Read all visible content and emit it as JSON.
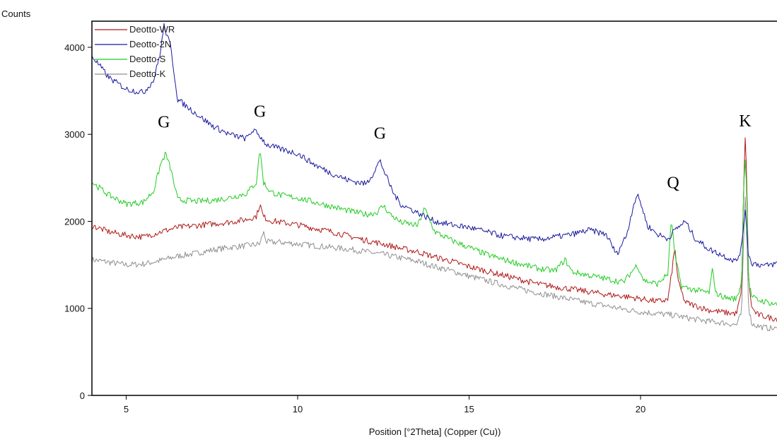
{
  "chart_data": {
    "type": "line",
    "ylabel": "Counts",
    "xlabel": "Position [°2Theta] (Copper (Cu))",
    "xlim": [
      4,
      24
    ],
    "ylim": [
      0,
      4300
    ],
    "xticks": [
      5,
      10,
      15,
      20
    ],
    "yticks": [
      0,
      1000,
      2000,
      3000,
      4000
    ],
    "grid": false,
    "legend_position": "top-left",
    "series": [
      {
        "name": "Deotto-WR",
        "color": "#b01818",
        "x": [
          4,
          4.5,
          5,
          5.5,
          6,
          6.5,
          7,
          7.5,
          8,
          8.5,
          8.8,
          8.9,
          9.0,
          9.2,
          9.5,
          10,
          10.5,
          11,
          11.5,
          12,
          12.5,
          13,
          13.5,
          14,
          14.5,
          15,
          15.5,
          16,
          16.5,
          17,
          17.5,
          18,
          18.5,
          19,
          19.5,
          20,
          20.5,
          20.8,
          20.9,
          21.0,
          21.1,
          21.3,
          21.6,
          22,
          22.5,
          22.8,
          22.95,
          23.0,
          23.05,
          23.1,
          23.15,
          23.25,
          23.4,
          23.6,
          23.8,
          24
        ],
        "y": [
          1950,
          1880,
          1840,
          1820,
          1880,
          1930,
          1950,
          1970,
          1990,
          2020,
          2060,
          2200,
          2050,
          2010,
          1990,
          1960,
          1920,
          1880,
          1830,
          1780,
          1740,
          1690,
          1650,
          1590,
          1540,
          1480,
          1430,
          1380,
          1330,
          1280,
          1250,
          1220,
          1190,
          1160,
          1140,
          1110,
          1080,
          1100,
          1380,
          1700,
          1300,
          1070,
          1030,
          980,
          950,
          940,
          1200,
          2300,
          2950,
          2500,
          1300,
          1000,
          930,
          910,
          890,
          880
        ]
      },
      {
        "name": "Deotto-2N",
        "color": "#1a1aa0",
        "x": [
          4,
          4.5,
          5,
          5.5,
          5.8,
          6,
          6.1,
          6.3,
          6.5,
          7,
          7.5,
          8,
          8.5,
          8.7,
          8.9,
          9.1,
          9.5,
          10,
          10.5,
          11,
          11.5,
          12,
          12.2,
          12.4,
          12.6,
          12.8,
          13,
          13.5,
          14,
          14.5,
          15,
          15.5,
          16,
          16.5,
          17,
          17.5,
          18,
          18.5,
          19,
          19.3,
          19.6,
          19.8,
          19.9,
          20.0,
          20.2,
          20.5,
          20.8,
          21.0,
          21.3,
          21.6,
          22,
          22.5,
          22.8,
          22.95,
          23.0,
          23.05,
          23.1,
          23.15,
          23.25,
          23.4,
          23.6,
          23.8,
          24
        ],
        "y": [
          3900,
          3650,
          3520,
          3480,
          3620,
          3950,
          4250,
          4000,
          3400,
          3250,
          3100,
          3000,
          2950,
          3050,
          2980,
          2880,
          2830,
          2780,
          2650,
          2550,
          2470,
          2430,
          2550,
          2700,
          2500,
          2320,
          2200,
          2100,
          2000,
          1960,
          1930,
          1880,
          1830,
          1810,
          1790,
          1820,
          1850,
          1900,
          1850,
          1620,
          1850,
          2200,
          2300,
          2220,
          1950,
          1850,
          1800,
          1900,
          2000,
          1800,
          1680,
          1590,
          1540,
          1700,
          1950,
          2150,
          1900,
          1600,
          1520,
          1510,
          1490,
          1500,
          1520
        ]
      },
      {
        "name": "Deotto-S",
        "color": "#22cc22",
        "x": [
          4,
          4.5,
          5,
          5.5,
          5.8,
          6,
          6.15,
          6.3,
          6.5,
          7,
          7.5,
          8,
          8.5,
          8.8,
          8.9,
          9.0,
          9.2,
          9.5,
          10,
          10.5,
          11,
          11.5,
          12,
          12.3,
          12.5,
          12.7,
          13,
          13.5,
          13.7,
          14,
          14.5,
          15,
          15.5,
          16,
          16.5,
          17,
          17.5,
          17.8,
          18,
          18.5,
          19,
          19.5,
          19.9,
          20.1,
          20.5,
          20.8,
          20.9,
          21.0,
          21.2,
          21.6,
          22,
          22.1,
          22.2,
          22.5,
          22.8,
          22.95,
          23.0,
          23.05,
          23.1,
          23.15,
          23.25,
          23.4,
          23.6,
          23.8,
          24
        ],
        "y": [
          2450,
          2300,
          2200,
          2220,
          2350,
          2650,
          2780,
          2600,
          2250,
          2230,
          2240,
          2270,
          2320,
          2450,
          2850,
          2450,
          2340,
          2300,
          2270,
          2220,
          2170,
          2120,
          2080,
          2100,
          2180,
          2080,
          1990,
          1950,
          2150,
          1880,
          1780,
          1700,
          1620,
          1560,
          1510,
          1460,
          1430,
          1560,
          1420,
          1380,
          1340,
          1300,
          1500,
          1320,
          1280,
          1400,
          2050,
          1600,
          1250,
          1210,
          1180,
          1450,
          1170,
          1120,
          1110,
          1300,
          2300,
          2750,
          2350,
          1300,
          1130,
          1100,
          1080,
          1060,
          1040
        ]
      },
      {
        "name": "Deotto-K",
        "color": "#909090",
        "x": [
          4,
          4.5,
          5,
          5.5,
          6,
          6.5,
          7,
          7.5,
          8,
          8.5,
          8.9,
          9.0,
          9.1,
          9.5,
          10,
          10.5,
          11,
          11.5,
          12,
          12.5,
          13,
          13.5,
          14,
          14.5,
          15,
          15.5,
          16,
          16.5,
          17,
          17.5,
          18,
          18.5,
          19,
          19.5,
          20,
          20.5,
          21,
          21.5,
          22,
          22.5,
          22.8,
          22.95,
          23.0,
          23.05,
          23.1,
          23.15,
          23.25,
          23.4,
          23.6,
          23.8,
          24
        ],
        "y": [
          1560,
          1530,
          1500,
          1510,
          1550,
          1600,
          1630,
          1670,
          1700,
          1720,
          1740,
          1880,
          1760,
          1760,
          1740,
          1720,
          1700,
          1680,
          1650,
          1620,
          1580,
          1540,
          1480,
          1430,
          1370,
          1320,
          1270,
          1220,
          1180,
          1140,
          1100,
          1060,
          1030,
          990,
          960,
          940,
          920,
          880,
          850,
          830,
          810,
          950,
          1700,
          2300,
          1900,
          1000,
          820,
          800,
          780,
          770,
          760
        ]
      }
    ],
    "annotations": [
      {
        "text": "G",
        "x": 6.1,
        "y": 3080
      },
      {
        "text": "G",
        "x": 8.9,
        "y": 3200
      },
      {
        "text": "G",
        "x": 12.4,
        "y": 2950
      },
      {
        "text": "Q",
        "x": 20.95,
        "y": 2380
      },
      {
        "text": "K",
        "x": 23.05,
        "y": 3090
      }
    ]
  }
}
